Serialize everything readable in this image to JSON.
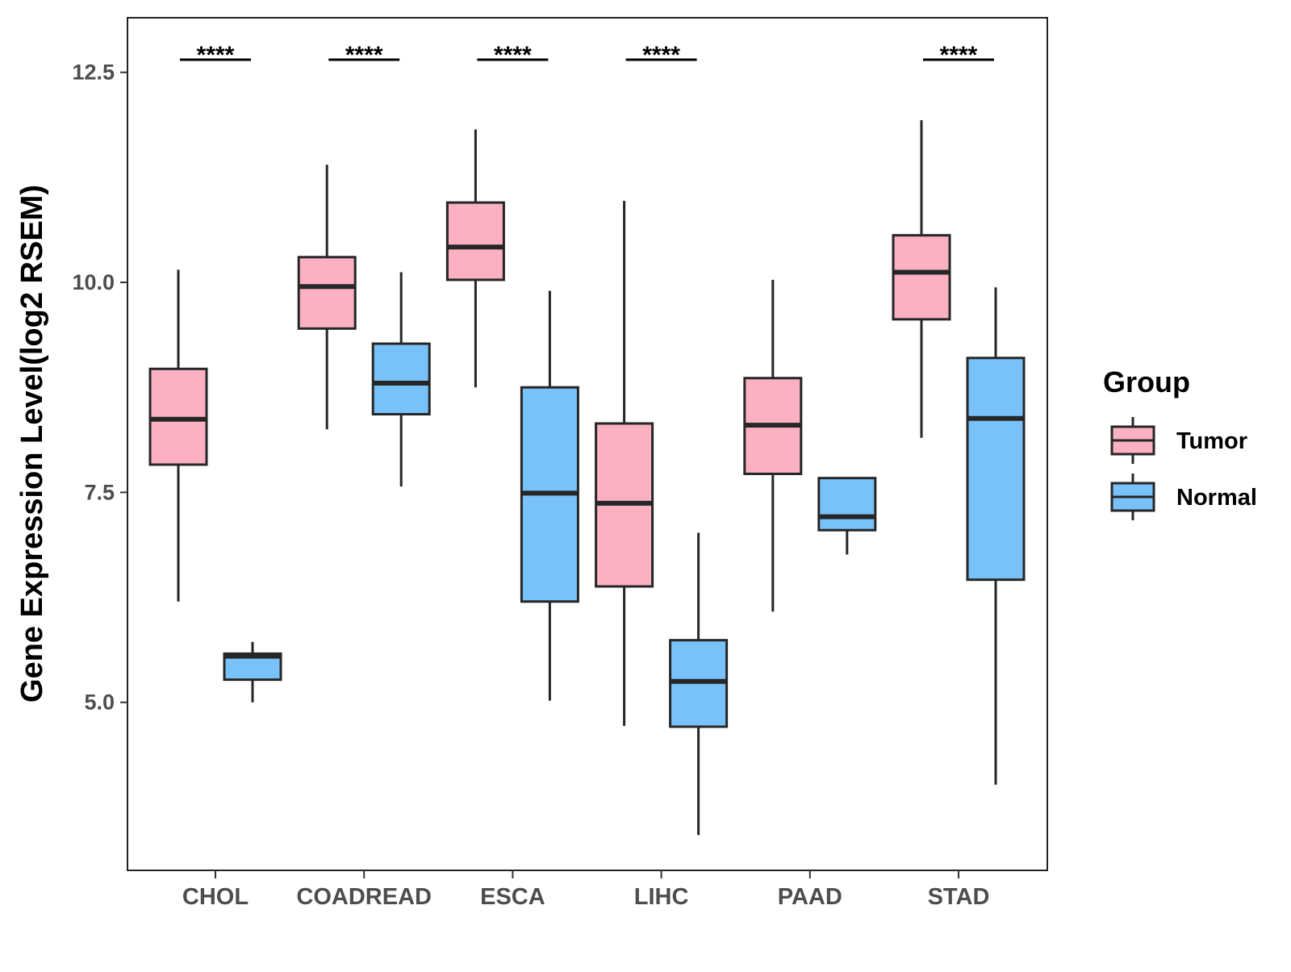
{
  "chart_data": {
    "type": "boxplot",
    "title": "",
    "xlabel": "",
    "ylabel": "Gene Expression Level(log2 RSEM)",
    "ylim": [
      3.0,
      13.15
    ],
    "yticks": [
      5.0,
      7.5,
      10.0,
      12.5
    ],
    "ytick_labels": [
      "5.0",
      "7.5",
      "10.0",
      "12.5"
    ],
    "categories": [
      "CHOL",
      "COADREAD",
      "ESCA",
      "LIHC",
      "PAAD",
      "STAD"
    ],
    "legend": {
      "title": "Group",
      "position": "right",
      "entries": [
        "Tumor",
        "Normal"
      ]
    },
    "colors": {
      "Tumor": "#fbb1c2",
      "Normal": "#78c2f9",
      "outline": "#262626"
    },
    "series": [
      {
        "name": "Tumor",
        "boxes": [
          {
            "category": "CHOL",
            "whisker_low": 6.2,
            "q1": 7.83,
            "median": 8.37,
            "q3": 8.97,
            "whisker_high": 10.15
          },
          {
            "category": "COADREAD",
            "whisker_low": 8.25,
            "q1": 9.45,
            "median": 9.95,
            "q3": 10.3,
            "whisker_high": 11.4
          },
          {
            "category": "ESCA",
            "whisker_low": 8.75,
            "q1": 10.03,
            "median": 10.42,
            "q3": 10.95,
            "whisker_high": 11.82
          },
          {
            "category": "LIHC",
            "whisker_low": 4.72,
            "q1": 6.38,
            "median": 7.37,
            "q3": 8.32,
            "whisker_high": 10.97
          },
          {
            "category": "PAAD",
            "whisker_low": 6.08,
            "q1": 7.72,
            "median": 8.3,
            "q3": 8.86,
            "whisker_high": 10.03
          },
          {
            "category": "STAD",
            "whisker_low": 8.15,
            "q1": 9.56,
            "median": 10.12,
            "q3": 10.56,
            "whisker_high": 11.93
          }
        ]
      },
      {
        "name": "Normal",
        "boxes": [
          {
            "category": "CHOL",
            "whisker_low": 5.0,
            "q1": 5.27,
            "median": 5.55,
            "q3": 5.58,
            "whisker_high": 5.72
          },
          {
            "category": "COADREAD",
            "whisker_low": 7.57,
            "q1": 8.43,
            "median": 8.8,
            "q3": 9.27,
            "whisker_high": 10.12
          },
          {
            "category": "ESCA",
            "whisker_low": 5.02,
            "q1": 6.2,
            "median": 7.49,
            "q3": 8.75,
            "whisker_high": 9.9
          },
          {
            "category": "LIHC",
            "whisker_low": 3.42,
            "q1": 4.71,
            "median": 5.25,
            "q3": 5.74,
            "whisker_high": 7.02
          },
          {
            "category": "PAAD",
            "whisker_low": 6.76,
            "q1": 7.05,
            "median": 7.21,
            "q3": 7.67,
            "whisker_high": 7.67
          },
          {
            "category": "STAD",
            "whisker_low": 4.02,
            "q1": 6.46,
            "median": 8.38,
            "q3": 9.1,
            "whisker_high": 9.94
          }
        ]
      }
    ],
    "annotations": [
      {
        "category": "CHOL",
        "text": "****"
      },
      {
        "category": "COADREAD",
        "text": "****"
      },
      {
        "category": "ESCA",
        "text": "****"
      },
      {
        "category": "LIHC",
        "text": "****"
      },
      {
        "category": "STAD",
        "text": "****"
      }
    ]
  }
}
